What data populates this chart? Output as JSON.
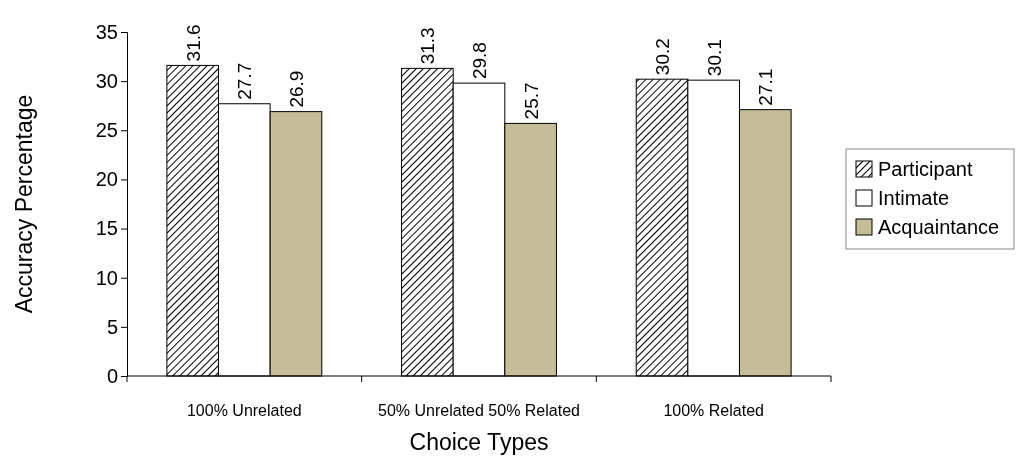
{
  "chart_data": {
    "type": "bar",
    "xlabel": "Choice Types",
    "ylabel": "Accuracy Percentage",
    "categories": [
      "100% Unrelated",
      "50% Unrelated 50% Related",
      "100% Related"
    ],
    "series": [
      {
        "name": "Participant",
        "color": "#000000",
        "values": [
          31.6,
          31.3,
          30.2
        ]
      },
      {
        "name": "Intimate",
        "color": "#ffffff",
        "values": [
          27.7,
          29.8,
          30.1
        ]
      },
      {
        "name": "Acquaintance",
        "color": "#c4bd97",
        "values": [
          26.9,
          25.7,
          27.1
        ]
      }
    ],
    "ylim": [
      0,
      35
    ],
    "yticks": [
      0,
      5,
      10,
      15,
      20,
      25,
      30,
      35
    ],
    "grid": false,
    "legend": "right",
    "data_labels": true
  }
}
